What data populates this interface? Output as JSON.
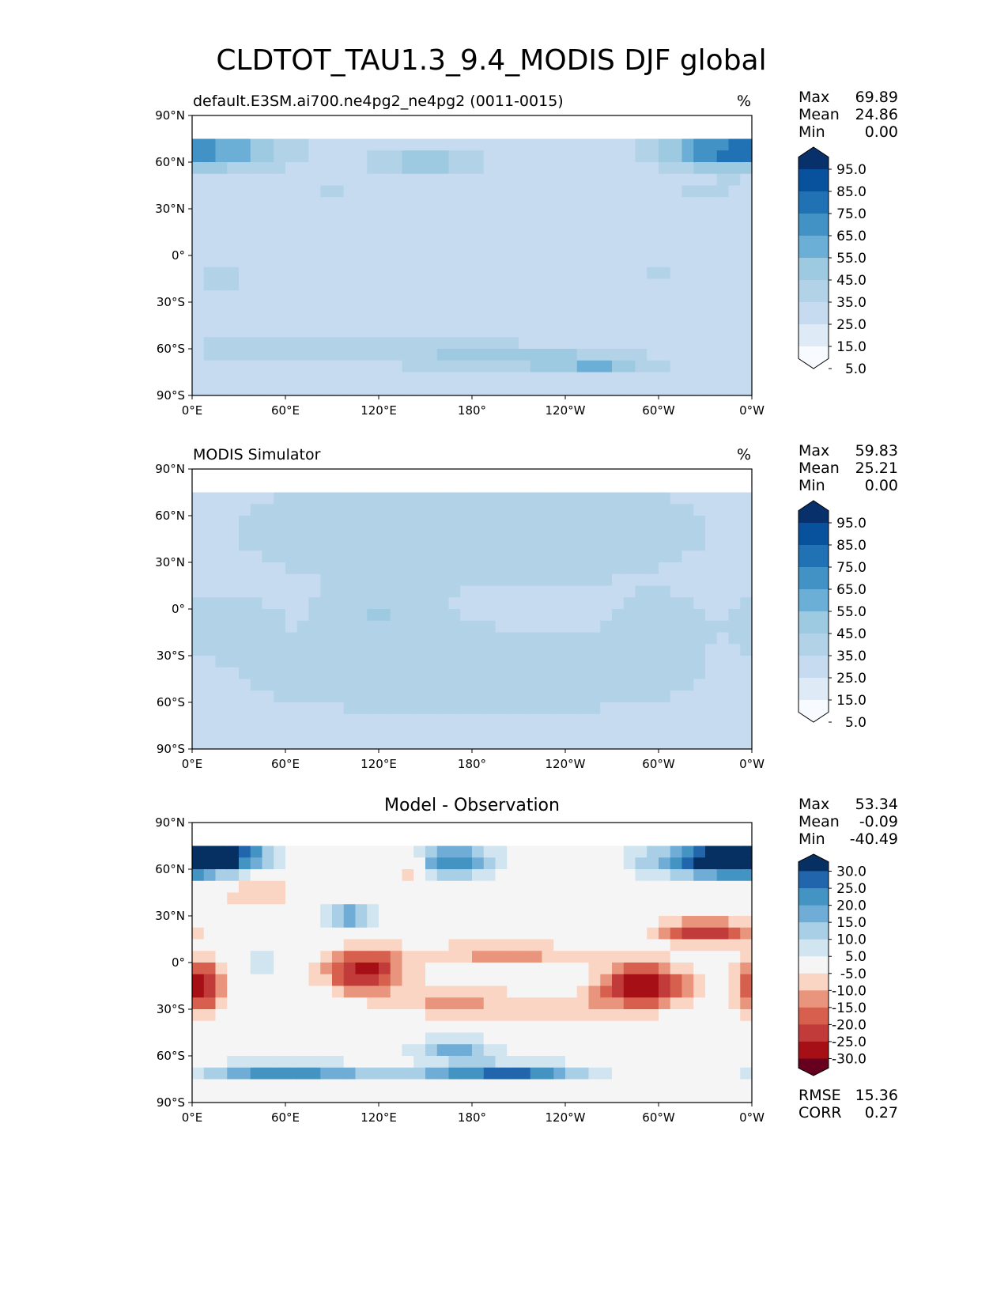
{
  "figure": {
    "title": "CLDTOT_TAU1.3_9.4_MODIS DJF global"
  },
  "panels": [
    {
      "left_title": "default.E3SM.ai700.ne4pg2_ne4pg2 (0011-0015)",
      "center_title": "",
      "units": "%",
      "stats": [
        {
          "label": "Max",
          "value": "69.89"
        },
        {
          "label": "Mean",
          "value": "24.86"
        },
        {
          "label": "Min",
          "value": "0.00"
        }
      ],
      "colorbar_ticks": [
        "95.0",
        "85.0",
        "75.0",
        "65.0",
        "55.0",
        "45.0",
        "35.0",
        "25.0",
        "15.0",
        "5.0"
      ],
      "colors": [
        "#f7fbff",
        "#deebf7",
        "#c6dbef",
        "#b2d2e8",
        "#9ecae1",
        "#6baed6",
        "#4292c6",
        "#2171b5",
        "#08519c",
        "#08306b"
      ]
    },
    {
      "left_title": "MODIS Simulator",
      "center_title": "",
      "units": "%",
      "stats": [
        {
          "label": "Max",
          "value": "59.83"
        },
        {
          "label": "Mean",
          "value": "25.21"
        },
        {
          "label": "Min",
          "value": "0.00"
        }
      ],
      "colorbar_ticks": [
        "95.0",
        "85.0",
        "75.0",
        "65.0",
        "55.0",
        "45.0",
        "35.0",
        "25.0",
        "15.0",
        "5.0"
      ],
      "colors": [
        "#f7fbff",
        "#deebf7",
        "#c6dbef",
        "#b2d2e8",
        "#9ecae1",
        "#6baed6",
        "#4292c6",
        "#2171b5",
        "#08519c",
        "#08306b"
      ]
    },
    {
      "left_title": "",
      "center_title": "Model - Observation",
      "units": "",
      "stats": [
        {
          "label": "Max",
          "value": "53.34"
        },
        {
          "label": "Mean",
          "value": "-0.09"
        },
        {
          "label": "Min",
          "value": "-40.49"
        }
      ],
      "extra_stats": [
        {
          "label": "RMSE",
          "value": "15.36"
        },
        {
          "label": "CORR",
          "value": "0.27"
        }
      ],
      "colorbar_ticks": [
        "30.0",
        "25.0",
        "20.0",
        "15.0",
        "10.0",
        "5.0",
        "-5.0",
        "-10.0",
        "-15.0",
        "-20.0",
        "-25.0",
        "-30.0"
      ],
      "colors": [
        "#67001f",
        "#a50f15",
        "#c23b3b",
        "#d6604d",
        "#e9957d",
        "#fbd5c4",
        "#f5f5f5",
        "#d1e5f0",
        "#a8cfe6",
        "#6fadd6",
        "#4393c3",
        "#2166ac",
        "#053061"
      ]
    }
  ],
  "chart_data": {
    "type": "heatmap",
    "map_projection": "PlateCarree",
    "x_tick_labels": [
      "0°E",
      "60°E",
      "120°E",
      "180°",
      "120°W",
      "60°W",
      "0°W"
    ],
    "y_tick_labels": [
      "90°N",
      "60°N",
      "30°N",
      "0°",
      "30°S",
      "60°S",
      "90°S"
    ],
    "x_range": [
      0,
      360
    ],
    "y_range": [
      -90,
      90
    ],
    "panels": [
      {
        "name": "default.E3SM.ai700.ne4pg2_ne4pg2 (0011-0015)",
        "max": 69.89,
        "mean": 24.86,
        "min": 0.0,
        "levels": [
          5,
          15,
          25,
          35,
          45,
          55,
          65,
          75,
          85,
          95
        ]
      },
      {
        "name": "MODIS Simulator",
        "max": 59.83,
        "mean": 25.21,
        "min": 0.0,
        "levels": [
          5,
          15,
          25,
          35,
          45,
          55,
          65,
          75,
          85,
          95
        ]
      },
      {
        "name": "Model - Observation",
        "max": 53.34,
        "mean": -0.09,
        "min": -40.49,
        "rmse": 15.36,
        "corr": 0.27,
        "levels": [
          -30,
          -25,
          -20,
          -15,
          -10,
          -5,
          5,
          10,
          15,
          20,
          25,
          30
        ]
      }
    ]
  }
}
